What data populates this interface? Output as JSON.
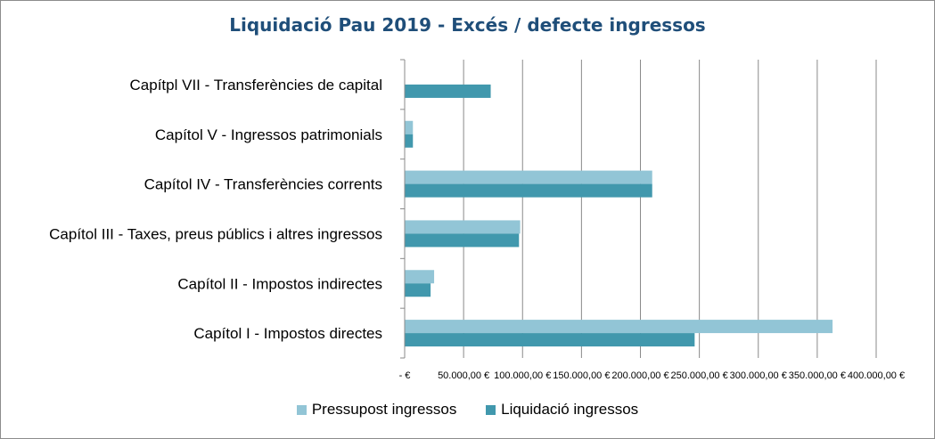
{
  "chart_data": {
    "type": "bar",
    "orientation": "horizontal",
    "title": "Liquidació Pau 2019 - Excés / defecte ingressos",
    "categories": [
      "Capítol I - Impostos directes",
      "Capítol II - Impostos indirectes",
      "Capítol III - Taxes, preus públics i altres ingressos",
      "Capítol IV - Transferències corrents",
      "Capítol V - Ingressos patrimonials",
      "Capítpl VII - Transferències de capital"
    ],
    "series": [
      {
        "name": "Pressupost ingressos",
        "color": "#92c5d6",
        "values": [
          363000,
          25000,
          98000,
          210000,
          7000,
          0
        ]
      },
      {
        "name": "Liquidació ingressos",
        "color": "#4198ad",
        "values": [
          246000,
          22000,
          97000,
          210000,
          7000,
          73000
        ]
      }
    ],
    "xlim": [
      0,
      400000
    ],
    "xticks": [
      0,
      50000,
      100000,
      150000,
      200000,
      250000,
      300000,
      350000,
      400000
    ],
    "xtick_labels": [
      "-   €",
      "50.000,00 €",
      "100.000,00 €",
      "150.000,00 €",
      "200.000,00 €",
      "250.000,00 €",
      "300.000,00 €",
      "350.000,00 €",
      "400.000,00 €"
    ],
    "grid": "vertical",
    "legend_position": "bottom"
  }
}
